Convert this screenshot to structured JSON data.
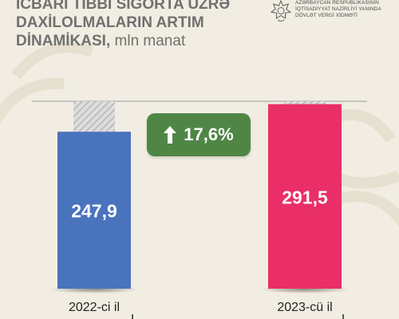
{
  "title_main": "İCBARİ TİBBİ SIĞORTA ÜZRƏ DAXİLOLMALARIN ARTIM DİNAMİKASI,",
  "title_unit": "mln manat",
  "org": {
    "line1": "AZƏRBAYCAN RESPUBLİKASININ",
    "line2": "İQTİSADİYYAT NAZİRLİYİ YANINDA",
    "line3": "DÖVLƏT VERGİ XİDMƏTİ"
  },
  "growth_label": "17,6%",
  "colors": {
    "background": "#f1ede2",
    "bar_2022": "#4a73be",
    "bar_2023": "#ea2e67",
    "growth_badge": "#4f8646",
    "axis": "#ababab"
  },
  "chart_data": {
    "type": "bar",
    "categories": [
      "2022-ci il",
      "2023-cü il"
    ],
    "values": [
      247.9,
      291.5
    ],
    "value_labels": [
      "247,9",
      "291,5"
    ],
    "title": "İCBARİ TİBBİ SIĞORTA ÜZRƏ DAXİLOLMALARIN ARTIM DİNAMİKASI, mln manat",
    "xlabel": "",
    "ylabel": "",
    "ylim": [
      0,
      296
    ],
    "grid": false,
    "legend": "none"
  }
}
